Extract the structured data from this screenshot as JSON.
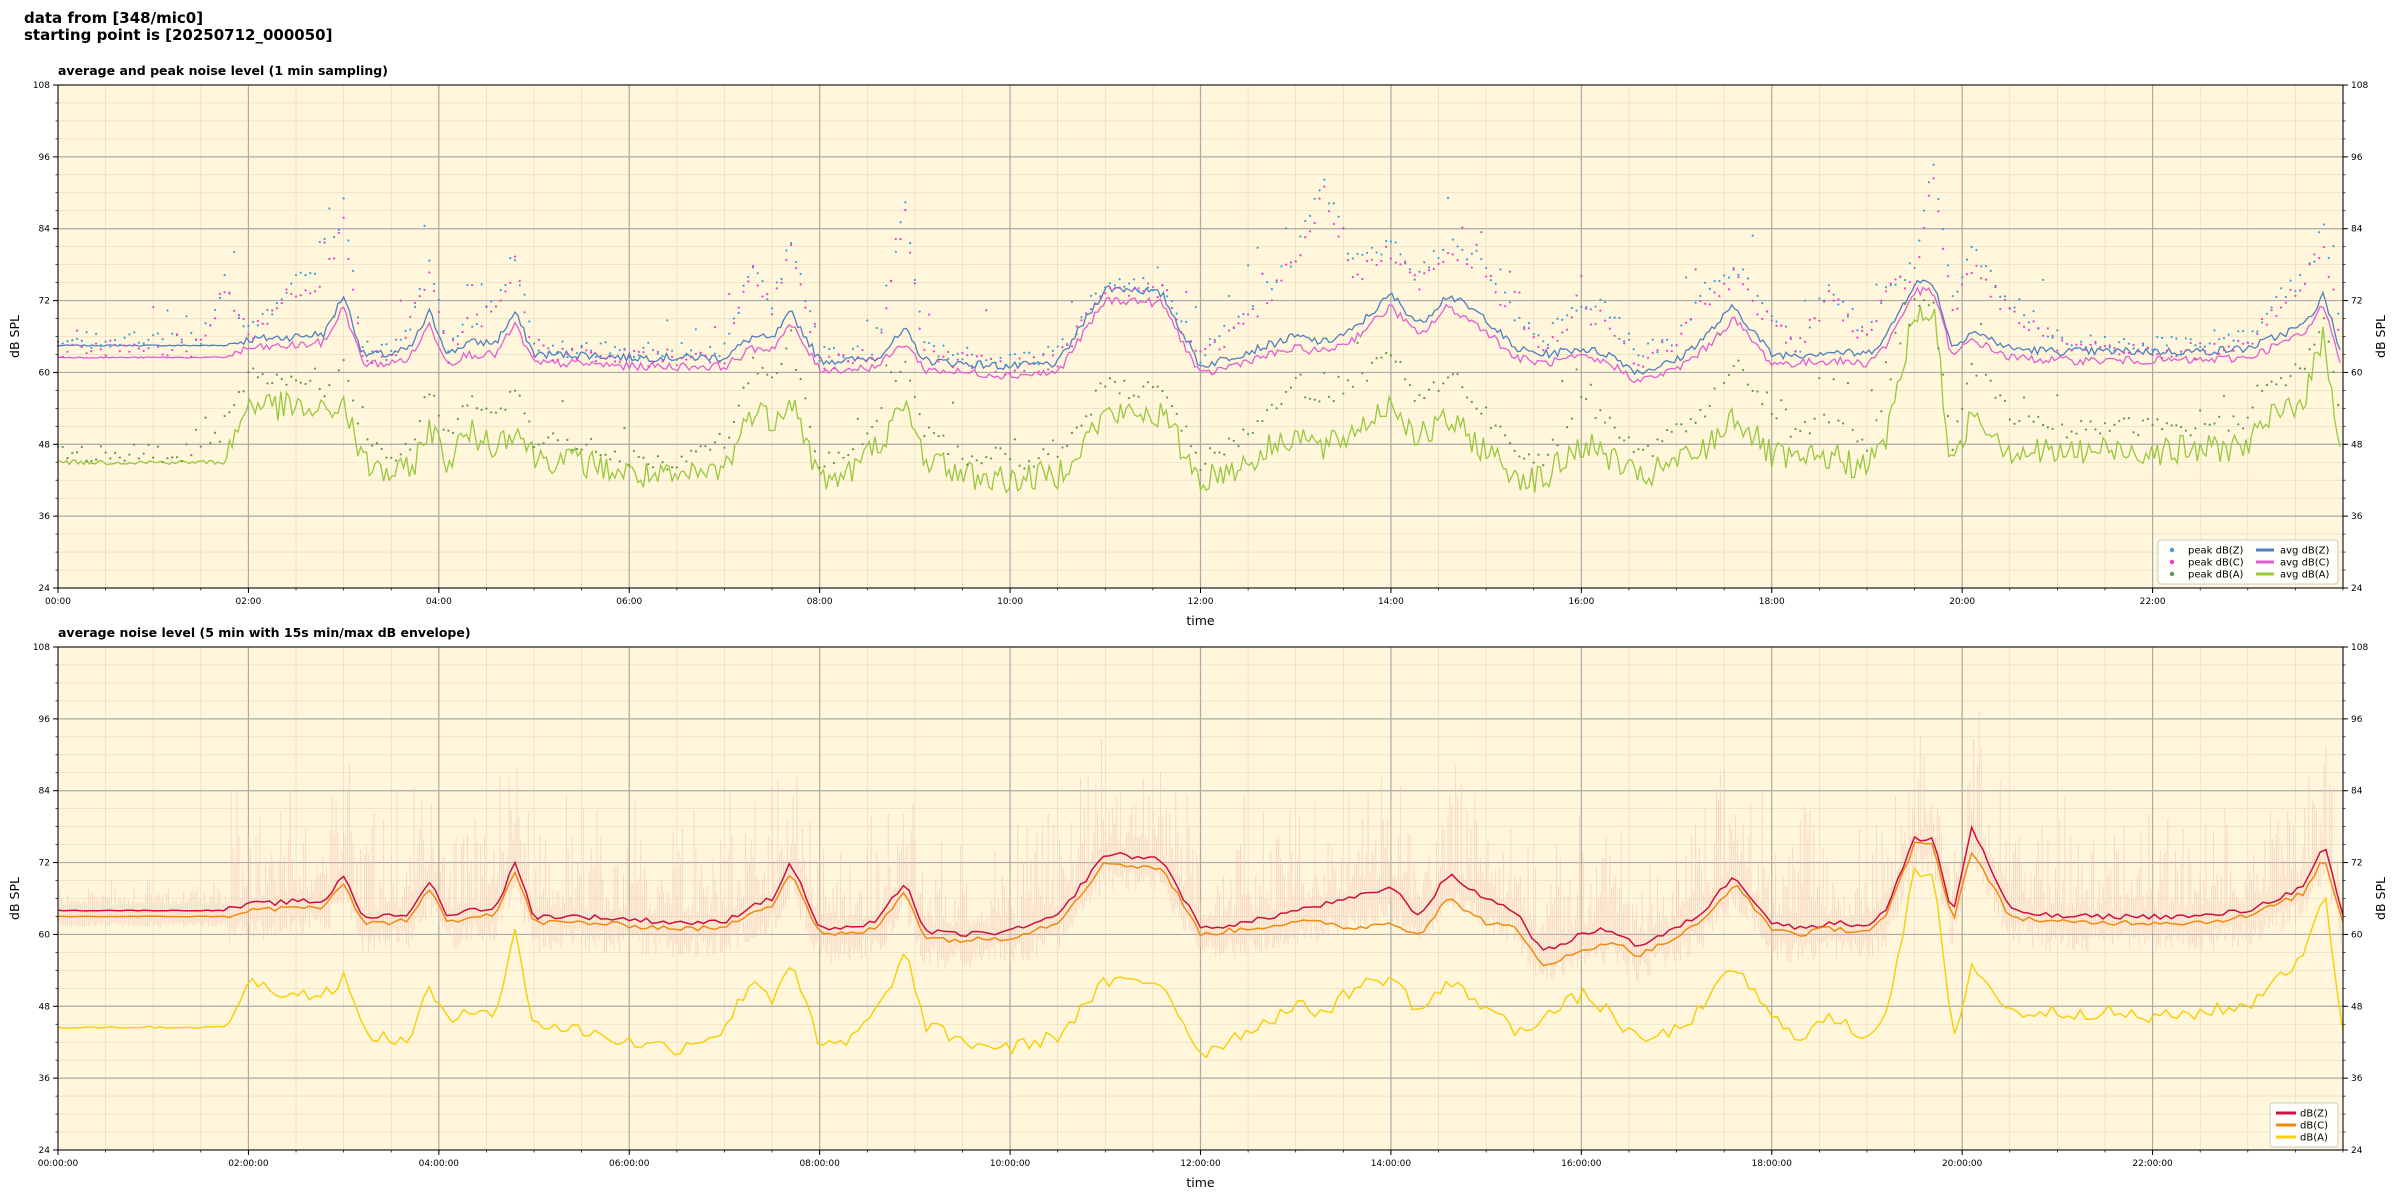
{
  "header": {
    "line1": "data from [348/mic0]",
    "line2": "starting point is [20250712_000050]"
  },
  "colors": {
    "plot_bg": "#fff6dc",
    "grid_major": "#aaaaaa",
    "grid_minor": "#e3d9bc",
    "avg_z": "#4f7fbf",
    "avg_c": "#e05fd0",
    "avg_a": "#98c83c",
    "peak_z": "#3aa0d8",
    "peak_c": "#e842c8",
    "peak_a": "#5c9a40",
    "line_z": "#cc1040",
    "line_c": "#f08a10",
    "line_a": "#f8d010",
    "envelope": "#f2bfb0"
  },
  "chart_data": [
    {
      "type": "line",
      "title": "average and peak noise level (1 min sampling)",
      "xlabel": "time",
      "ylabel": "dB SPL",
      "ylim": [
        24,
        108
      ],
      "xlim": [
        0,
        24
      ],
      "yticks": [
        "24",
        "36",
        "48",
        "60",
        "72",
        "84",
        "96",
        "108"
      ],
      "xticks": [
        "00:00",
        "02:00",
        "04:00",
        "06:00",
        "08:00",
        "10:00",
        "12:00",
        "14:00",
        "16:00",
        "18:00",
        "20:00",
        "22:00"
      ],
      "grid": true,
      "legend_position": "bottom-right",
      "legend": [
        "peak dB(Z)",
        "peak dB(C)",
        "peak dB(A)",
        "avg dB(Z)",
        "avg dB(C)",
        "avg dB(A)"
      ],
      "hours": [
        0,
        0.5,
        1,
        1.5,
        1.75,
        2,
        2.5,
        2.8,
        3.0,
        3.2,
        3.5,
        3.7,
        3.9,
        4.1,
        4.3,
        4.6,
        4.8,
        5.0,
        5.5,
        6,
        6.5,
        7.0,
        7.3,
        7.5,
        7.7,
        8.0,
        8.3,
        8.6,
        8.9,
        9.1,
        9.5,
        10.0,
        10.5,
        11.0,
        11.3,
        11.6,
        12.0,
        12.5,
        13.0,
        13.3,
        13.6,
        14.0,
        14.3,
        14.6,
        15.0,
        15.3,
        15.6,
        16.0,
        16.3,
        16.6,
        17.0,
        17.3,
        17.6,
        18.0,
        18.3,
        18.6,
        19.0,
        19.2,
        19.5,
        19.7,
        19.9,
        20.1,
        20.5,
        21.0,
        21.5,
        22.0,
        22.5,
        23.0,
        23.3,
        23.6,
        23.8,
        24.0
      ],
      "series": [
        {
          "name": "avg dB(Z)",
          "values": [
            64.5,
            64.5,
            64.5,
            64.5,
            64.5,
            65.5,
            66,
            66.5,
            73,
            63,
            63,
            64,
            70,
            63,
            65,
            65,
            70,
            63,
            63,
            62.5,
            62.5,
            62.5,
            66,
            65.5,
            70,
            62,
            62,
            62.5,
            67,
            62,
            61.5,
            61,
            61.5,
            74,
            74,
            73,
            61,
            63.5,
            66,
            65,
            67,
            73,
            68,
            73,
            69,
            64,
            63,
            64,
            63,
            60,
            62,
            66,
            71,
            63,
            63,
            63.5,
            63,
            66,
            75,
            75,
            64,
            67,
            64,
            63.5,
            63.5,
            63.5,
            63.5,
            64,
            66,
            68,
            73,
            62
          ]
        },
        {
          "name": "avg dB(C)",
          "values": [
            62.5,
            62.5,
            62.5,
            62.5,
            62.5,
            64,
            64.5,
            65,
            71,
            61.5,
            61.5,
            62.5,
            68,
            61.5,
            63,
            63,
            68,
            61.5,
            61.5,
            61,
            61,
            61,
            64,
            64,
            68,
            60.5,
            60.5,
            61,
            65,
            60.5,
            60,
            59.5,
            60,
            72,
            72,
            71.5,
            59.5,
            62,
            64,
            63.5,
            65.5,
            71,
            66,
            71,
            67,
            62.5,
            61.5,
            62.5,
            61.5,
            58.5,
            60.5,
            64,
            69,
            61.5,
            61.5,
            62,
            61.5,
            64.5,
            73.5,
            73.5,
            62.5,
            65.5,
            62.5,
            62,
            62,
            62,
            62,
            62.5,
            64.5,
            66.5,
            71.5,
            60.5
          ]
        },
        {
          "name": "avg dB(A)",
          "values": [
            45,
            45,
            45,
            45,
            45,
            55,
            54,
            53,
            55,
            45,
            43,
            43.5,
            51,
            45,
            50,
            48,
            51,
            46,
            45,
            43,
            42,
            44,
            54,
            52,
            56,
            42,
            43,
            48,
            54,
            46,
            43,
            42,
            43,
            53,
            53,
            53,
            42,
            45,
            50,
            47,
            50,
            55,
            49,
            52,
            47,
            43,
            42,
            48,
            46,
            42,
            45,
            47,
            53,
            46,
            45,
            46,
            44,
            49,
            70,
            70,
            43,
            54,
            47,
            46.5,
            47,
            47,
            47,
            48,
            53,
            56,
            66,
            45
          ]
        },
        {
          "name": "peak dB(Z)",
          "values": [
            65.5,
            65.5,
            65.5,
            65.5,
            75,
            67,
            75,
            76,
            88,
            64,
            64,
            66,
            80,
            64,
            68,
            72,
            80,
            64,
            64,
            63.5,
            63.5,
            63.5,
            78,
            72,
            82,
            63,
            63,
            64,
            88,
            64,
            63,
            62,
            63,
            75,
            75,
            75,
            63,
            70,
            80,
            92,
            78,
            82,
            76,
            82,
            78,
            70,
            65,
            72,
            70,
            63,
            66,
            74,
            78,
            70,
            64,
            75,
            66,
            75,
            77,
            95,
            72,
            80,
            72,
            66,
            65,
            64.5,
            64.5,
            66,
            72,
            76,
            84,
            64
          ]
        },
        {
          "name": "peak dB(C)",
          "values": [
            64,
            64,
            64,
            64,
            74,
            66,
            74,
            75,
            86,
            63,
            63,
            65,
            78,
            63,
            67,
            71,
            78,
            63,
            63,
            62.5,
            62.5,
            62.5,
            77,
            71,
            80,
            62,
            62,
            63,
            86,
            63,
            62,
            61,
            62,
            74,
            74,
            74,
            62,
            69,
            78,
            90,
            76,
            80,
            75,
            80,
            76,
            68,
            64,
            70,
            68,
            62,
            65,
            72,
            76,
            68,
            63,
            73,
            65,
            74,
            76,
            93,
            70,
            78,
            70,
            65,
            64,
            63.5,
            63.5,
            65,
            70,
            75,
            82,
            63
          ]
        },
        {
          "name": "peak dB(A)",
          "values": [
            46.5,
            46.5,
            46.5,
            46.5,
            50,
            60,
            58,
            57,
            63,
            48,
            46,
            47,
            57,
            49,
            55,
            53,
            57,
            49,
            48,
            46,
            45,
            48,
            62,
            58,
            65,
            45,
            46,
            53,
            62,
            50,
            46,
            45,
            46,
            58,
            57,
            57,
            45,
            50,
            58,
            55,
            58,
            63,
            55,
            60,
            53,
            47,
            45,
            55,
            52,
            46,
            50,
            54,
            62,
            52,
            50,
            52,
            48,
            56,
            71,
            71,
            47,
            62,
            53,
            50,
            51,
            51,
            51,
            52,
            58,
            62,
            70,
            48
          ]
        }
      ]
    },
    {
      "type": "line",
      "title": "average noise level (5 min with 15s min/max dB envelope)",
      "xlabel": "time",
      "ylabel": "dB SPL",
      "ylim": [
        24,
        108
      ],
      "xlim": [
        0,
        24
      ],
      "yticks": [
        "24",
        "36",
        "48",
        "60",
        "72",
        "84",
        "96",
        "108"
      ],
      "xticks": [
        "00:00:00",
        "02:00:00",
        "04:00:00",
        "06:00:00",
        "08:00:00",
        "10:00:00",
        "12:00:00",
        "14:00:00",
        "16:00:00",
        "18:00:00",
        "20:00:00",
        "22:00:00"
      ],
      "grid": true,
      "legend_position": "bottom-right",
      "legend": [
        "dB(Z)",
        "dB(C)",
        "dB(A)"
      ],
      "hours": [
        0,
        0.5,
        1,
        1.5,
        1.75,
        2,
        2.5,
        2.8,
        3.0,
        3.2,
        3.5,
        3.7,
        3.9,
        4.1,
        4.3,
        4.6,
        4.8,
        5.0,
        5.5,
        6,
        6.5,
        7.0,
        7.3,
        7.5,
        7.7,
        8.0,
        8.3,
        8.6,
        8.9,
        9.1,
        9.5,
        10.0,
        10.5,
        11.0,
        11.3,
        11.6,
        12.0,
        12.5,
        13.0,
        13.3,
        13.6,
        14.0,
        14.3,
        14.6,
        15.0,
        15.3,
        15.6,
        16.0,
        16.3,
        16.6,
        17.0,
        17.3,
        17.6,
        18.0,
        18.3,
        18.6,
        19.0,
        19.2,
        19.5,
        19.7,
        19.9,
        20.1,
        20.5,
        21.0,
        21.5,
        22.0,
        22.5,
        23.0,
        23.3,
        23.6,
        23.8,
        24.0
      ],
      "series": [
        {
          "name": "dB(Z)",
          "values": [
            64,
            64,
            64,
            64,
            64,
            65,
            65.5,
            65.5,
            70,
            63,
            63,
            63.5,
            69,
            63,
            64,
            64.5,
            72,
            63,
            63,
            62.5,
            62,
            62,
            65,
            66,
            72,
            61,
            61,
            62,
            69,
            60.5,
            60,
            60.5,
            63,
            73.5,
            73,
            72.5,
            61,
            62,
            64,
            65,
            66,
            68,
            63,
            70,
            66,
            64,
            57,
            60,
            61,
            58,
            61,
            64,
            70,
            62,
            61,
            62,
            61.5,
            64,
            76,
            76,
            63,
            78,
            64,
            63,
            63,
            63,
            63,
            64,
            66,
            68,
            75,
            63
          ]
        },
        {
          "name": "dB(C)",
          "values": [
            63,
            63,
            63,
            63,
            63,
            64,
            64.5,
            64.5,
            68.5,
            62,
            62,
            62.5,
            67.5,
            62,
            63,
            63.5,
            70.5,
            62,
            62,
            61.5,
            61,
            61,
            64,
            65,
            70.5,
            60,
            60,
            61,
            67.5,
            59.5,
            59,
            59.5,
            62,
            72,
            71.5,
            71,
            60,
            61,
            62,
            62,
            61,
            62,
            60,
            66,
            62,
            61,
            55,
            57,
            59,
            56.5,
            59.5,
            62.5,
            68.5,
            61,
            60,
            61,
            60.5,
            63,
            75,
            75,
            62,
            74,
            63,
            62,
            62,
            62,
            62,
            63,
            65,
            67,
            73,
            62
          ]
        },
        {
          "name": "dB(A)",
          "values": [
            44.5,
            44.5,
            44.5,
            44.5,
            44.5,
            52,
            50,
            50,
            53,
            44,
            42,
            43,
            51,
            45,
            48,
            47,
            60,
            45,
            44,
            42,
            41,
            44,
            53,
            49,
            56,
            41,
            42,
            47,
            57,
            45,
            42,
            41,
            43,
            52,
            52,
            52,
            40,
            44,
            48,
            47,
            51,
            53,
            47,
            52,
            48,
            44,
            46,
            50,
            47,
            42,
            44,
            48,
            55,
            46,
            43,
            46,
            43,
            47,
            70,
            70,
            42,
            55,
            47,
            47,
            47,
            46,
            47,
            48,
            53,
            56,
            68,
            44
          ]
        }
      ]
    }
  ]
}
